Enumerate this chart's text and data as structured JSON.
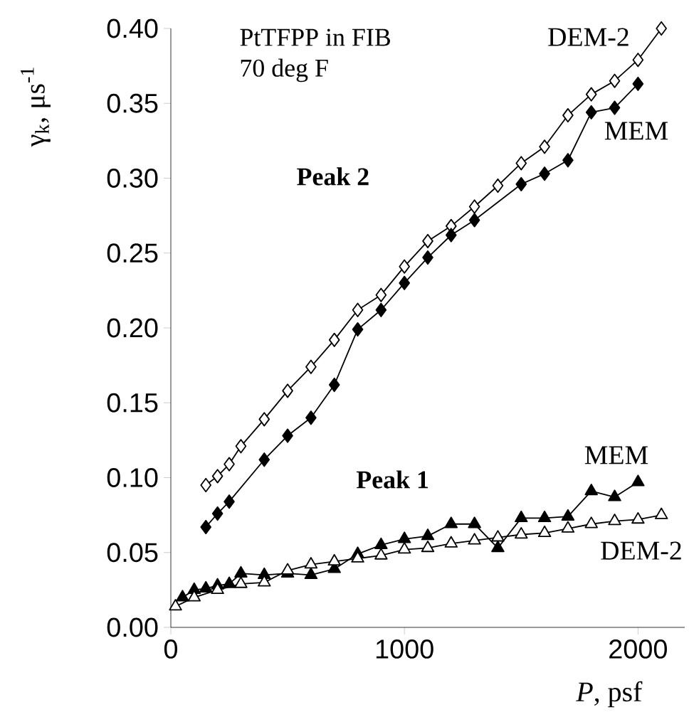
{
  "chart_data": {
    "type": "line",
    "xlabel": "*P*, psf",
    "ylabel": "γ$_{k}$, μs$^{-1}$",
    "xlim": [
      0,
      2200
    ],
    "ylim": [
      0,
      0.4
    ],
    "xticks": [
      0,
      1000,
      2000
    ],
    "yticks": [
      {
        "value": 0,
        "label": "0.00"
      },
      {
        "value": 0.05,
        "label": "0.05"
      },
      {
        "value": 0.1,
        "label": "0.10"
      },
      {
        "value": 0.15,
        "label": "0.15"
      },
      {
        "value": 0.2,
        "label": "0.20"
      },
      {
        "value": 0.25,
        "label": "0.25"
      },
      {
        "value": 0.3,
        "label": "0.30"
      },
      {
        "value": 0.35,
        "label": "0.35"
      },
      {
        "value": 0.4,
        "label": "0.40"
      }
    ],
    "grid": false,
    "line_style": "solid",
    "annotations": [
      "PtTFPP in FIB",
      "70 deg F",
      "**Peak 2**",
      "**Peak 1**"
    ],
    "series": [
      {
        "name": "DEM-2",
        "color": "#ffffff",
        "marker": "diamond",
        "x": [
          150,
          200,
          250,
          300,
          400,
          500,
          600,
          700,
          800,
          900,
          1000,
          1100,
          1200,
          1300,
          1400,
          1500,
          1600,
          1700,
          1800,
          1900,
          2000,
          2100
        ],
        "values": [
          0.095,
          0.101,
          0.109,
          0.121,
          0.139,
          0.158,
          0.174,
          0.192,
          0.212,
          0.222,
          0.241,
          0.258,
          0.268,
          0.281,
          0.295,
          0.31,
          0.321,
          0.342,
          0.356,
          0.365,
          0.379,
          0.4
        ]
      },
      {
        "name": "MEM",
        "color": "#000000",
        "marker": "diamond",
        "x": [
          150,
          200,
          250,
          400,
          500,
          600,
          700,
          800,
          900,
          1000,
          1100,
          1200,
          1300,
          1500,
          1600,
          1700,
          1800,
          1900,
          2000
        ],
        "values": [
          0.067,
          0.076,
          0.084,
          0.112,
          0.128,
          0.14,
          0.162,
          0.199,
          0.212,
          0.23,
          0.247,
          0.262,
          0.272,
          0.296,
          0.303,
          0.312,
          0.344,
          0.347,
          0.363
        ]
      },
      {
        "name": "MEM",
        "color": "#000000",
        "marker": "triangle",
        "x": [
          50,
          100,
          150,
          200,
          250,
          300,
          400,
          500,
          600,
          700,
          800,
          900,
          1000,
          1100,
          1200,
          1300,
          1400,
          1500,
          1600,
          1700,
          1800,
          1900,
          2000
        ],
        "values": [
          0.02,
          0.025,
          0.026,
          0.028,
          0.029,
          0.036,
          0.035,
          0.036,
          0.035,
          0.039,
          0.049,
          0.055,
          0.059,
          0.061,
          0.069,
          0.069,
          0.053,
          0.073,
          0.073,
          0.074,
          0.091,
          0.087,
          0.097
        ]
      },
      {
        "name": "DEM-2",
        "color": "#ffffff",
        "marker": "triangle",
        "x": [
          20,
          100,
          200,
          300,
          400,
          500,
          600,
          700,
          800,
          900,
          1000,
          1100,
          1200,
          1300,
          1400,
          1500,
          1600,
          1700,
          1800,
          1900,
          2000,
          2100
        ],
        "values": [
          0.014,
          0.02,
          0.025,
          0.029,
          0.03,
          0.038,
          0.042,
          0.044,
          0.046,
          0.048,
          0.052,
          0.053,
          0.056,
          0.058,
          0.06,
          0.062,
          0.063,
          0.066,
          0.069,
          0.071,
          0.072,
          0.075
        ]
      }
    ]
  }
}
